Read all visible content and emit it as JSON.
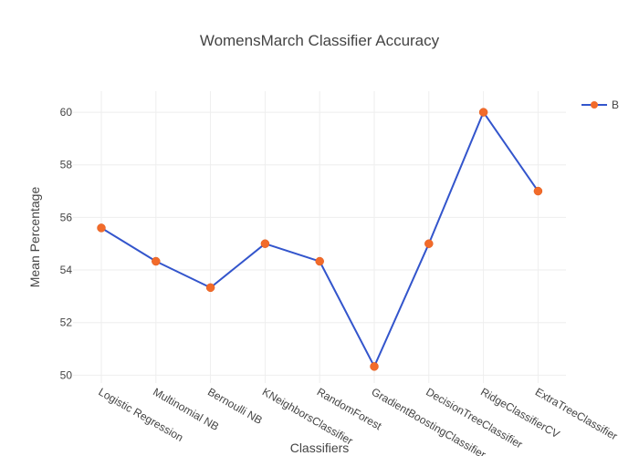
{
  "chart_data": {
    "type": "line",
    "title": "WomensMarch Classifier Accuracy",
    "xlabel": "Classifiers",
    "ylabel": "Mean Percentage",
    "categories": [
      "Logistic Regression",
      "Multinomial NB",
      "Bernoulli NB",
      "KNeighborsClassifier",
      "RandomForest",
      "GradientBoostingClassifier",
      "DecisionTreeClassifier",
      "RidgeClassifierCV",
      "ExtraTreeClassifier"
    ],
    "series": [
      {
        "name": "B",
        "values": [
          55.6,
          54.33,
          53.33,
          55.0,
          54.33,
          50.33,
          55.0,
          60.0,
          57.0
        ],
        "line_color": "#3355cc",
        "marker_color": "#f26b2a"
      }
    ],
    "ylim": [
      49.7,
      60.8
    ],
    "yticks": [
      50,
      52,
      54,
      56,
      58,
      60
    ],
    "grid": true,
    "legend_position": "top-right"
  }
}
